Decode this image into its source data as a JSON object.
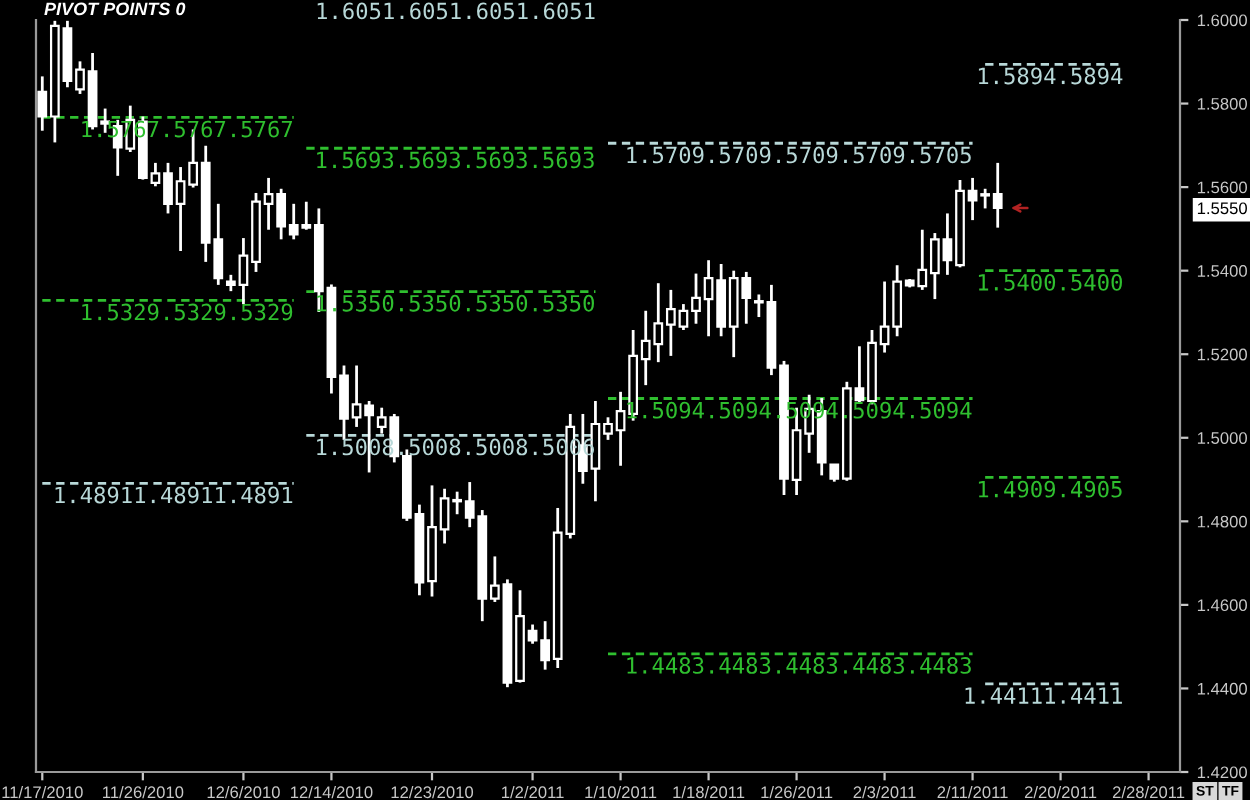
{
  "chart_data": {
    "type": "candlestick",
    "title": "PIVOT POINTS 0",
    "color": "#ffffff",
    "categories": [
      "11/17/2010",
      null,
      null,
      null,
      null,
      null,
      null,
      null,
      "11/26/2010",
      null,
      null,
      null,
      null,
      null,
      null,
      null,
      "12/6/2010",
      null,
      null,
      null,
      null,
      null,
      null,
      "12/14/2010",
      null,
      null,
      null,
      null,
      null,
      null,
      null,
      "12/23/2010",
      null,
      null,
      null,
      null,
      null,
      null,
      null,
      "1/2/2011",
      null,
      null,
      null,
      null,
      null,
      null,
      "1/10/2011",
      null,
      null,
      null,
      null,
      null,
      null,
      "1/18/2011",
      null,
      null,
      null,
      null,
      null,
      null,
      "1/26/2011",
      null,
      null,
      null,
      null,
      null,
      null,
      "2/3/2011",
      null,
      null,
      null,
      null,
      null,
      null,
      "2/11/2011",
      null,
      null,
      null,
      null,
      null,
      null,
      "2/20/2011",
      null,
      null,
      null,
      null,
      null,
      null,
      "2/28/2011",
      null,
      null
    ],
    "ohlc": [
      [
        1.5828,
        1.5865,
        1.5735,
        1.5769
      ],
      [
        1.5769,
        1.5998,
        1.5707,
        1.5986
      ],
      [
        1.598,
        1.5998,
        1.5839,
        1.5854
      ],
      [
        1.5834,
        1.5901,
        1.5823,
        1.5881
      ],
      [
        1.5877,
        1.5921,
        1.5738,
        1.5746
      ],
      [
        1.5757,
        1.5788,
        1.573,
        1.5752
      ],
      [
        1.5746,
        1.5761,
        1.5627,
        1.5695
      ],
      [
        1.5692,
        1.5795,
        1.5684,
        1.5761
      ],
      [
        1.5757,
        1.5769,
        1.5618,
        1.5622
      ],
      [
        1.561,
        1.5658,
        1.5602,
        1.5633
      ],
      [
        1.5633,
        1.5658,
        1.5537,
        1.556
      ],
      [
        1.556,
        1.5648,
        1.5447,
        1.5614
      ],
      [
        1.5606,
        1.5738,
        1.5599,
        1.5658
      ],
      [
        1.5658,
        1.5699,
        1.5421,
        1.5467
      ],
      [
        1.5475,
        1.556,
        1.5366,
        1.5382
      ],
      [
        1.5374,
        1.539,
        1.5351,
        1.5366
      ],
      [
        1.5366,
        1.5478,
        1.532,
        1.5436
      ],
      [
        1.5421,
        1.5586,
        1.5397,
        1.5565
      ],
      [
        1.556,
        1.5622,
        1.5498,
        1.5583
      ],
      [
        1.5583,
        1.5596,
        1.5475,
        1.5506
      ],
      [
        1.5509,
        1.556,
        1.5475,
        1.5487
      ],
      [
        1.5509,
        1.5565,
        1.5498,
        1.5503
      ],
      [
        1.5509,
        1.5549,
        1.5301,
        1.5351
      ],
      [
        1.5359,
        1.5367,
        1.5106,
        1.5146
      ],
      [
        1.5149,
        1.5173,
        1.4995,
        1.5046
      ],
      [
        1.5049,
        1.5173,
        1.5026,
        1.508
      ],
      [
        1.5077,
        1.5088,
        1.4917,
        1.5054
      ],
      [
        1.5026,
        1.5072,
        1.501,
        1.5049
      ],
      [
        1.5049,
        1.5057,
        1.4941,
        1.4956
      ],
      [
        1.4956,
        1.4972,
        1.4801,
        1.4809
      ],
      [
        1.4817,
        1.484,
        1.4623,
        1.4654
      ],
      [
        1.4657,
        1.4886,
        1.462,
        1.4786
      ],
      [
        1.4781,
        1.4878,
        1.4747,
        1.4855
      ],
      [
        1.4848,
        1.4871,
        1.4817,
        1.4851
      ],
      [
        1.4848,
        1.4894,
        1.4786,
        1.4809
      ],
      [
        1.4812,
        1.4827,
        1.4561,
        1.4615
      ],
      [
        1.4615,
        1.4716,
        1.4607,
        1.4646
      ],
      [
        1.4649,
        1.4661,
        1.4403,
        1.4414
      ],
      [
        1.4418,
        1.4635,
        1.4414,
        1.4573
      ],
      [
        1.4538,
        1.4553,
        1.4507,
        1.4515
      ],
      [
        1.4515,
        1.4561,
        1.4445,
        1.4468
      ],
      [
        1.4471,
        1.4832,
        1.4449,
        1.4773
      ],
      [
        1.477,
        1.5057,
        1.4759,
        1.5026
      ],
      [
        1.4982,
        1.5057,
        1.489,
        1.4921
      ],
      [
        1.4926,
        1.5088,
        1.4848,
        1.5033
      ],
      [
        1.501,
        1.5049,
        1.4995,
        1.5033
      ],
      [
        1.5018,
        1.511,
        1.4933,
        1.5064
      ],
      [
        1.5057,
        1.5258,
        1.5041,
        1.5196
      ],
      [
        1.5188,
        1.5304,
        1.5126,
        1.5232
      ],
      [
        1.5224,
        1.537,
        1.5181,
        1.5274
      ],
      [
        1.5271,
        1.5354,
        1.5196,
        1.5308
      ],
      [
        1.5266,
        1.532,
        1.5258,
        1.5304
      ],
      [
        1.5304,
        1.5393,
        1.5273,
        1.5335
      ],
      [
        1.5332,
        1.5425,
        1.5243,
        1.5382
      ],
      [
        1.5377,
        1.5416,
        1.5243,
        1.5266
      ],
      [
        1.5266,
        1.54,
        1.5193,
        1.5382
      ],
      [
        1.5382,
        1.5397,
        1.5273,
        1.5335
      ],
      [
        1.5327,
        1.5343,
        1.5289,
        1.5324
      ],
      [
        1.5325,
        1.5366,
        1.515,
        1.5168
      ],
      [
        1.5173,
        1.5184,
        1.4863,
        1.4902
      ],
      [
        1.4899,
        1.5072,
        1.4863,
        1.5018
      ],
      [
        1.501,
        1.5103,
        1.4964,
        1.5069
      ],
      [
        1.5064,
        1.5095,
        1.491,
        1.4941
      ],
      [
        1.4936,
        1.4936,
        1.4895,
        1.4902
      ],
      [
        1.4902,
        1.5134,
        1.4897,
        1.5118
      ],
      [
        1.5118,
        1.5219,
        1.5085,
        1.509
      ],
      [
        1.5088,
        1.5258,
        1.508,
        1.5227
      ],
      [
        1.5224,
        1.5374,
        1.5204,
        1.5266
      ],
      [
        1.5266,
        1.5413,
        1.5243,
        1.5374
      ],
      [
        1.5376,
        1.538,
        1.536,
        1.5365
      ],
      [
        1.5363,
        1.5498,
        1.5354,
        1.5402
      ],
      [
        1.5394,
        1.549,
        1.5332,
        1.5475
      ],
      [
        1.5475,
        1.5537,
        1.539,
        1.5425
      ],
      [
        1.5413,
        1.5617,
        1.5408,
        1.5591
      ],
      [
        1.5591,
        1.5622,
        1.5521,
        1.5568
      ],
      [
        1.558,
        1.5596,
        1.5549,
        1.5583
      ],
      [
        1.5583,
        1.5658,
        1.5503,
        1.555
      ],
      null,
      null,
      null,
      null,
      null,
      null,
      null,
      null,
      null,
      null,
      null,
      null,
      null,
      null
    ],
    "series": [
      {
        "type": "line",
        "name": "1.5767.5767.5767",
        "color": "#2fbf2f",
        "line_style": "dashed",
        "values": [
          1.5767,
          1.5767,
          1.5767,
          1.5767,
          1.5767,
          1.5767,
          1.5767,
          1.5767,
          1.5767,
          1.5767,
          1.5767,
          1.5767,
          1.5767,
          1.5767,
          1.5767,
          1.5767,
          1.5767,
          1.5767,
          1.5767,
          1.5767,
          1.5767,
          null,
          null,
          null,
          null,
          null,
          null,
          null,
          null,
          null,
          null,
          null,
          null,
          null,
          null,
          null,
          null,
          null,
          null,
          null,
          null,
          null,
          null,
          null,
          null,
          null,
          null,
          null,
          null,
          null,
          null,
          null,
          null,
          null,
          null,
          null,
          null,
          null,
          null,
          null,
          null,
          null,
          null,
          null,
          null,
          null,
          null,
          null,
          null,
          null,
          null,
          null,
          null,
          null,
          null,
          null,
          null,
          null,
          null,
          null,
          null,
          null,
          null,
          null,
          null,
          null,
          null,
          null,
          null,
          null,
          null
        ]
      },
      {
        "type": "line",
        "name": "1.5329.5329.5329",
        "color": "#2fbf2f",
        "line_style": "dashed",
        "values": [
          1.5329,
          1.5329,
          1.5329,
          1.5329,
          1.5329,
          1.5329,
          1.5329,
          1.5329,
          1.5329,
          1.5329,
          1.5329,
          1.5329,
          1.5329,
          1.5329,
          1.5329,
          1.5329,
          1.5329,
          1.5329,
          1.5329,
          1.5329,
          1.5329,
          null,
          null,
          null,
          null,
          null,
          null,
          null,
          null,
          null,
          null,
          null,
          null,
          null,
          null,
          null,
          null,
          null,
          null,
          null,
          null,
          null,
          null,
          null,
          null,
          null,
          null,
          null,
          null,
          null,
          null,
          null,
          null,
          null,
          null,
          null,
          null,
          null,
          null,
          null,
          null,
          null,
          null,
          null,
          null,
          null,
          null,
          null,
          null,
          null,
          null,
          null,
          null,
          null,
          null,
          null,
          null,
          null,
          null,
          null,
          null,
          null,
          null,
          null,
          null,
          null,
          null,
          null,
          null,
          null,
          null
        ]
      },
      {
        "type": "line",
        "name": "1.48911.48911.4891",
        "color": "#b8d8d8",
        "line_style": "dashed",
        "values": [
          1.4891,
          1.4891,
          1.4891,
          1.4891,
          1.4891,
          1.4891,
          1.4891,
          1.4891,
          1.4891,
          1.4891,
          1.4891,
          1.4891,
          1.4891,
          1.4891,
          1.4891,
          1.4891,
          1.4891,
          1.4891,
          1.4891,
          1.4891,
          1.4891,
          null,
          null,
          null,
          null,
          null,
          null,
          null,
          null,
          null,
          null,
          null,
          null,
          null,
          null,
          null,
          null,
          null,
          null,
          null,
          null,
          null,
          null,
          null,
          null,
          null,
          null,
          null,
          null,
          null,
          null,
          null,
          null,
          null,
          null,
          null,
          null,
          null,
          null,
          null,
          null,
          null,
          null,
          null,
          null,
          null,
          null,
          null,
          null,
          null,
          null,
          null,
          null,
          null,
          null,
          null,
          null,
          null,
          null,
          null,
          null,
          null,
          null,
          null,
          null,
          null,
          null,
          null,
          null,
          null,
          null
        ]
      },
      {
        "type": "line",
        "name": "1.5693.5693.5693.5693",
        "color": "#2fbf2f",
        "line_style": "dashed",
        "values": [
          null,
          null,
          null,
          null,
          null,
          null,
          null,
          null,
          null,
          null,
          null,
          null,
          null,
          null,
          null,
          null,
          null,
          null,
          null,
          null,
          null,
          1.5693,
          1.5693,
          1.5693,
          1.5693,
          1.5693,
          1.5693,
          1.5693,
          1.5693,
          1.5693,
          1.5693,
          1.5693,
          1.5693,
          1.5693,
          1.5693,
          1.5693,
          1.5693,
          1.5693,
          1.5693,
          1.5693,
          1.5693,
          1.5693,
          1.5693,
          1.5693,
          1.5693,
          null,
          null,
          null,
          null,
          null,
          null,
          null,
          null,
          null,
          null,
          null,
          null,
          null,
          null,
          null,
          null,
          null,
          null,
          null,
          null,
          null,
          null,
          null,
          null,
          null,
          null,
          null,
          null,
          null,
          null,
          null,
          null,
          null,
          null,
          null,
          null,
          null,
          null,
          null,
          null,
          null,
          null,
          null,
          null,
          null,
          null
        ]
      },
      {
        "type": "line",
        "name": "1.5350.5350.5350.5350",
        "color": "#2fbf2f",
        "line_style": "dashed",
        "values": [
          null,
          null,
          null,
          null,
          null,
          null,
          null,
          null,
          null,
          null,
          null,
          null,
          null,
          null,
          null,
          null,
          null,
          null,
          null,
          null,
          null,
          1.535,
          1.535,
          null,
          1.535,
          1.535,
          1.535,
          1.535,
          1.535,
          1.535,
          1.535,
          1.535,
          1.535,
          1.535,
          1.535,
          1.535,
          1.535,
          1.535,
          1.535,
          1.535,
          1.535,
          1.535,
          1.535,
          1.535,
          1.535,
          null,
          null,
          null,
          null,
          null,
          null,
          null,
          null,
          null,
          null,
          null,
          null,
          null,
          null,
          null,
          null,
          null,
          null,
          null,
          null,
          null,
          null,
          null,
          null,
          null,
          null,
          null,
          null,
          null,
          null,
          null,
          null,
          null,
          null,
          null,
          null,
          null,
          null,
          null,
          null,
          null,
          null,
          null,
          null,
          null,
          null
        ]
      },
      {
        "type": "line",
        "name": "1.5008.5008.5008.5006",
        "color": "#b8d8d8",
        "line_style": "dashed",
        "values": [
          null,
          null,
          null,
          null,
          null,
          null,
          null,
          null,
          null,
          null,
          null,
          null,
          null,
          null,
          null,
          null,
          null,
          null,
          null,
          null,
          null,
          1.5006,
          1.5006,
          1.5006,
          1.5006,
          1.5006,
          1.5006,
          1.5006,
          1.5006,
          1.5006,
          1.5006,
          1.5006,
          1.5006,
          1.5006,
          1.5006,
          1.5006,
          1.5006,
          1.5006,
          1.5006,
          1.5006,
          1.5006,
          1.5006,
          1.5006,
          1.5006,
          1.5006,
          null,
          null,
          null,
          null,
          null,
          null,
          null,
          null,
          null,
          null,
          null,
          null,
          null,
          null,
          null,
          null,
          null,
          null,
          null,
          null,
          null,
          null,
          null,
          null,
          null,
          null,
          null,
          null,
          null,
          null,
          null,
          null,
          null,
          null,
          null,
          null,
          null,
          null,
          null,
          null,
          null,
          null,
          null,
          null,
          null,
          null
        ]
      },
      {
        "type": "line",
        "name": "1.5709.5709.5709.5709.5705",
        "color": "#b8d8d8",
        "line_style": "dashed",
        "values": [
          null,
          null,
          null,
          null,
          null,
          null,
          null,
          null,
          null,
          null,
          null,
          null,
          null,
          null,
          null,
          null,
          null,
          null,
          null,
          null,
          null,
          null,
          null,
          null,
          null,
          null,
          null,
          null,
          null,
          null,
          null,
          null,
          null,
          null,
          null,
          null,
          null,
          null,
          null,
          null,
          null,
          null,
          null,
          null,
          null,
          1.5705,
          1.5705,
          1.5705,
          1.5705,
          1.5705,
          1.5705,
          1.5705,
          1.5705,
          1.5705,
          1.5705,
          1.5705,
          1.5705,
          1.5705,
          1.5705,
          1.5705,
          1.5705,
          1.5705,
          1.5705,
          1.5705,
          1.5705,
          1.5705,
          1.5705,
          1.5705,
          1.5705,
          1.5705,
          1.5705,
          1.5705,
          1.5705,
          1.5705,
          1.5705,
          null,
          null,
          null,
          null,
          null,
          null,
          null,
          null,
          null,
          null,
          null,
          null,
          null,
          null,
          null,
          null
        ]
      },
      {
        "type": "line",
        "name": "1.5094.5094.5094.5094.5094",
        "color": "#2fbf2f",
        "line_style": "dashed",
        "values": [
          null,
          null,
          null,
          null,
          null,
          null,
          null,
          null,
          null,
          null,
          null,
          null,
          null,
          null,
          null,
          null,
          null,
          null,
          null,
          null,
          null,
          null,
          null,
          null,
          null,
          null,
          null,
          null,
          null,
          null,
          null,
          null,
          null,
          null,
          null,
          null,
          null,
          null,
          null,
          null,
          null,
          null,
          null,
          null,
          null,
          1.5094,
          1.5094,
          1.5094,
          1.5094,
          1.5094,
          1.5094,
          1.5094,
          1.5094,
          1.5094,
          1.5094,
          1.5094,
          1.5094,
          1.5094,
          1.5094,
          1.5094,
          1.5094,
          1.5094,
          1.5094,
          1.5094,
          1.5094,
          1.5094,
          1.5094,
          1.5094,
          1.5094,
          1.5094,
          1.5094,
          1.5094,
          1.5094,
          1.5094,
          1.5094,
          null,
          null,
          null,
          null,
          null,
          null,
          null,
          null,
          null,
          null,
          null,
          null,
          null,
          null,
          null,
          null
        ]
      },
      {
        "type": "line",
        "name": "1.4483.4483.4483.4483.4483",
        "color": "#2fbf2f",
        "line_style": "dashed",
        "values": [
          null,
          null,
          null,
          null,
          null,
          null,
          null,
          null,
          null,
          null,
          null,
          null,
          null,
          null,
          null,
          null,
          null,
          null,
          null,
          null,
          null,
          null,
          null,
          null,
          null,
          null,
          null,
          null,
          null,
          null,
          null,
          null,
          null,
          null,
          null,
          null,
          null,
          null,
          null,
          null,
          null,
          null,
          null,
          null,
          null,
          1.4483,
          1.4483,
          1.4483,
          1.4483,
          1.4483,
          1.4483,
          1.4483,
          1.4483,
          1.4483,
          1.4483,
          1.4483,
          1.4483,
          1.4483,
          1.4483,
          1.4483,
          1.4483,
          1.4483,
          1.4483,
          1.4483,
          1.4483,
          1.4483,
          1.4483,
          1.4483,
          1.4483,
          1.4483,
          1.4483,
          1.4483,
          1.4483,
          1.4483,
          1.4483,
          null,
          null,
          null,
          null,
          null,
          null,
          null,
          null,
          null,
          null,
          null,
          null,
          null,
          null,
          null,
          null
        ]
      },
      {
        "type": "line",
        "name": "1.5894.5894",
        "color": "#b8d8d8",
        "line_style": "dashed",
        "values": [
          null,
          null,
          null,
          null,
          null,
          null,
          null,
          null,
          null,
          null,
          null,
          null,
          null,
          null,
          null,
          null,
          null,
          null,
          null,
          null,
          null,
          null,
          null,
          null,
          null,
          null,
          null,
          null,
          null,
          null,
          null,
          null,
          null,
          null,
          null,
          null,
          null,
          null,
          null,
          null,
          null,
          null,
          null,
          null,
          null,
          null,
          null,
          null,
          null,
          null,
          null,
          null,
          null,
          null,
          null,
          null,
          null,
          null,
          null,
          null,
          null,
          null,
          null,
          null,
          null,
          null,
          null,
          null,
          null,
          null,
          null,
          null,
          null,
          null,
          null,
          1.5894,
          1.5894,
          1.5894,
          1.5894,
          1.5894,
          1.5894,
          1.5894,
          1.5894,
          1.5894,
          1.5894,
          1.5894,
          1.5894,
          null,
          null,
          null,
          null
        ]
      },
      {
        "type": "line",
        "name": "1.5400.5400",
        "color": "#2fbf2f",
        "line_style": "dashed",
        "values": [
          null,
          null,
          null,
          null,
          null,
          null,
          null,
          null,
          null,
          null,
          null,
          null,
          null,
          null,
          null,
          null,
          null,
          null,
          null,
          null,
          null,
          null,
          null,
          null,
          null,
          null,
          null,
          null,
          null,
          null,
          null,
          null,
          null,
          null,
          null,
          null,
          null,
          null,
          null,
          null,
          null,
          null,
          null,
          null,
          null,
          null,
          null,
          null,
          null,
          null,
          null,
          null,
          null,
          null,
          null,
          null,
          null,
          null,
          null,
          null,
          null,
          null,
          null,
          null,
          null,
          null,
          null,
          null,
          null,
          null,
          null,
          null,
          null,
          null,
          null,
          1.54,
          1.54,
          1.54,
          1.54,
          1.54,
          1.54,
          1.54,
          1.54,
          1.54,
          1.54,
          1.54,
          1.54,
          null,
          null,
          null,
          null
        ]
      },
      {
        "type": "line",
        "name": "1.4909.4905",
        "color": "#2fbf2f",
        "line_style": "dashed",
        "values": [
          null,
          null,
          null,
          null,
          null,
          null,
          null,
          null,
          null,
          null,
          null,
          null,
          null,
          null,
          null,
          null,
          null,
          null,
          null,
          null,
          null,
          null,
          null,
          null,
          null,
          null,
          null,
          null,
          null,
          null,
          null,
          null,
          null,
          null,
          null,
          null,
          null,
          null,
          null,
          null,
          null,
          null,
          null,
          null,
          null,
          null,
          null,
          null,
          null,
          null,
          null,
          null,
          null,
          null,
          null,
          null,
          null,
          null,
          null,
          null,
          null,
          null,
          null,
          null,
          null,
          null,
          null,
          null,
          null,
          null,
          null,
          null,
          null,
          null,
          null,
          1.4905,
          1.4905,
          1.4905,
          1.4905,
          1.4905,
          1.4905,
          1.4905,
          1.4905,
          1.4905,
          1.4905,
          1.4905,
          1.4905,
          null,
          null,
          null,
          null
        ]
      },
      {
        "type": "line",
        "name": "1.44111.4411",
        "color": "#b8d8d8",
        "line_style": "dashed",
        "values": [
          null,
          null,
          null,
          null,
          null,
          null,
          null,
          null,
          null,
          null,
          null,
          null,
          null,
          null,
          null,
          null,
          null,
          null,
          null,
          null,
          null,
          null,
          null,
          null,
          null,
          null,
          null,
          null,
          null,
          null,
          null,
          null,
          null,
          null,
          null,
          null,
          null,
          null,
          null,
          null,
          null,
          null,
          null,
          null,
          null,
          null,
          null,
          null,
          null,
          null,
          null,
          null,
          null,
          null,
          null,
          null,
          null,
          null,
          null,
          null,
          null,
          null,
          null,
          null,
          null,
          null,
          null,
          null,
          null,
          null,
          null,
          null,
          null,
          null,
          null,
          1.4411,
          1.4411,
          1.4411,
          1.4411,
          1.4411,
          1.4411,
          1.4411,
          1.4411,
          1.4411,
          1.4411,
          1.4411,
          1.4411,
          null,
          null,
          null,
          null
        ]
      }
    ],
    "annotations": [
      "1.6051.6051.6051.6051",
      "ST",
      "TF"
    ],
    "ylim": [
      1.42,
      1.6
    ],
    "yticks": [
      {
        "value": 1.42,
        "label": "1.4200"
      },
      {
        "value": 1.44,
        "label": "1.4400"
      },
      {
        "value": 1.46,
        "label": "1.4600"
      },
      {
        "value": 1.48,
        "label": "1.4800"
      },
      {
        "value": 1.5,
        "label": "1.5000"
      },
      {
        "value": 1.52,
        "label": "1.5200"
      },
      {
        "value": 1.54,
        "label": "1.5400"
      },
      {
        "value": 1.555,
        "label": "1.5550"
      },
      {
        "value": 1.56,
        "label": "1.5600"
      },
      {
        "value": 1.58,
        "label": "1.5800"
      },
      {
        "value": 1.6,
        "label": "1.6000"
      }
    ]
  }
}
